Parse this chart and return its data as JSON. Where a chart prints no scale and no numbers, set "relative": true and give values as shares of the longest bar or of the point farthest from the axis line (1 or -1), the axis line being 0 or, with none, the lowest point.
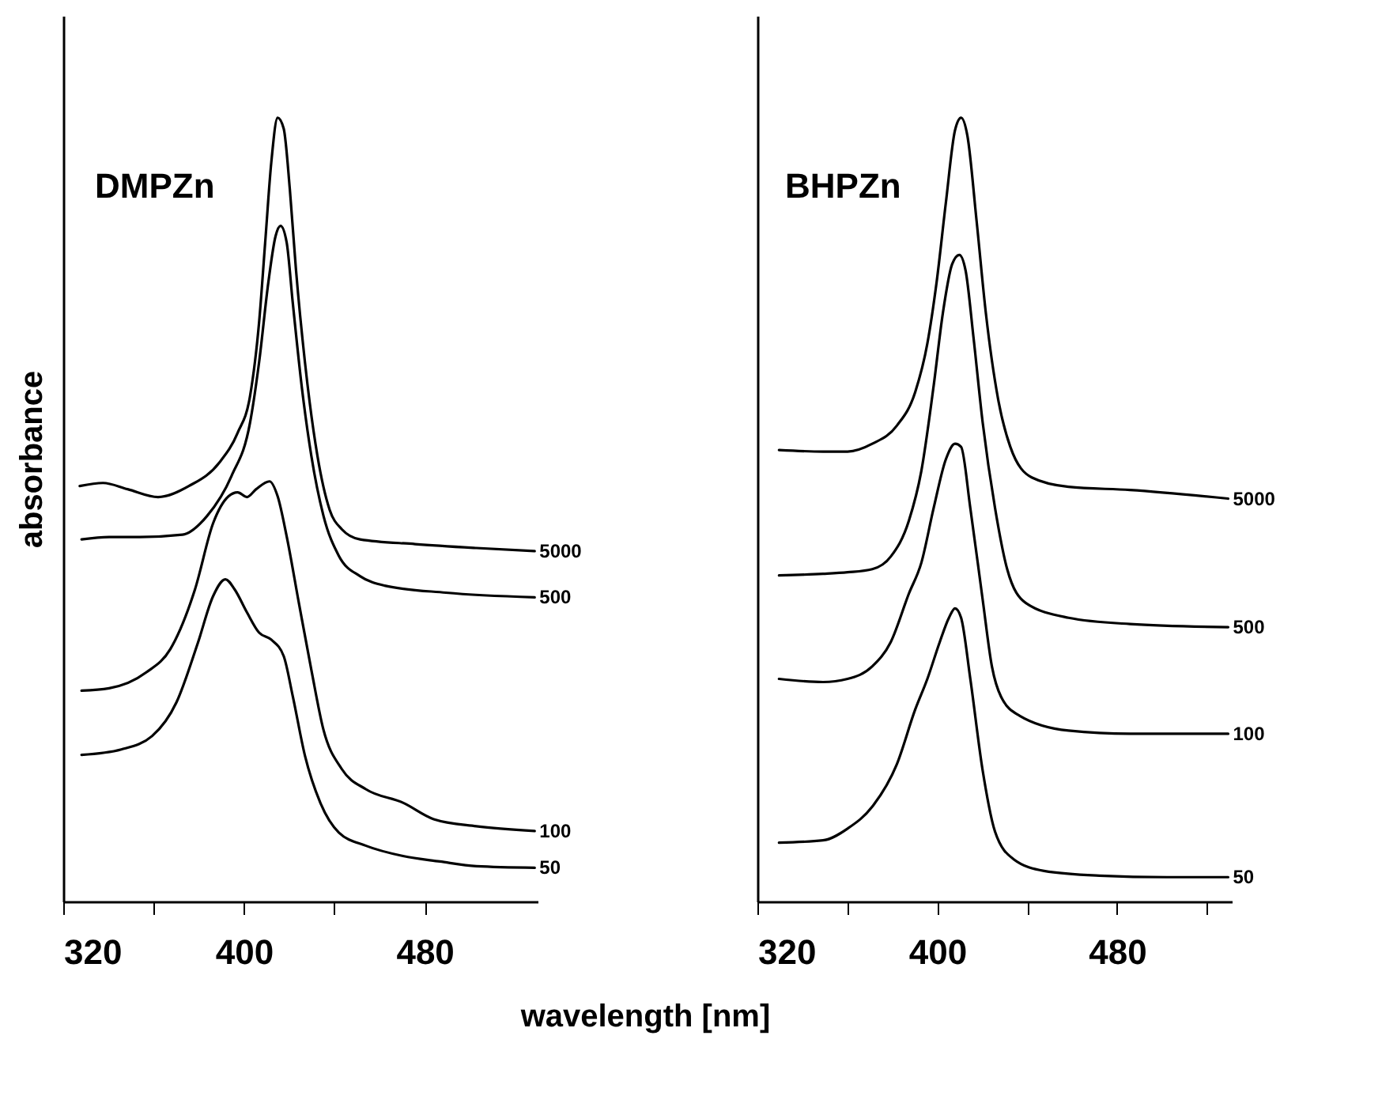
{
  "chart_data": [
    {
      "type": "line",
      "title": "DMPZn",
      "ylabel": "absorbance",
      "xlabel": "wavelength [nm]",
      "relative": true,
      "xlim": [
        320,
        530
      ],
      "xticks": [
        320,
        {
          "value": 360,
          "label": null
        },
        400,
        {
          "value": 440,
          "label": null
        },
        480
      ],
      "grid": false,
      "legend": false,
      "marker": "none",
      "line_style": "solid",
      "series": [
        {
          "name": "5000",
          "color": "#000000",
          "x": [
            327.3,
            337.6,
            348.5,
            362,
            375.6,
            389.1,
            397.2,
            402.7,
            406.7,
            409.4,
            412.1,
            414.9,
            417.6,
            420.3,
            423,
            427,
            432.5,
            437.9,
            443.3,
            451.4,
            475.8,
            502.9,
            528.7
          ],
          "values": [
            0.53,
            0.534,
            0.526,
            0.516,
            0.53,
            0.56,
            0.598,
            0.645,
            0.739,
            0.841,
            0.943,
            1.0,
            0.986,
            0.909,
            0.807,
            0.688,
            0.569,
            0.5,
            0.475,
            0.462,
            0.456,
            0.451,
            0.447
          ]
        },
        {
          "name": "500",
          "color": "#000000",
          "x": [
            328.1,
            340.3,
            353.9,
            372.8,
            383.7,
            394.5,
            402.7,
            406.7,
            410.8,
            414,
            416.2,
            418.9,
            421.6,
            425.7,
            429.8,
            435.2,
            442,
            451.4,
            462.3,
            489.4,
            528.7
          ],
          "values": [
            0.462,
            0.465,
            0.465,
            0.468,
            0.492,
            0.543,
            0.611,
            0.688,
            0.79,
            0.849,
            0.862,
            0.841,
            0.764,
            0.654,
            0.569,
            0.492,
            0.441,
            0.415,
            0.403,
            0.394,
            0.388
          ]
        },
        {
          "name": "100",
          "color": "#000000",
          "x": [
            328.1,
            340.3,
            356.6,
            367.4,
            378.3,
            386.4,
            393.2,
            397.2,
            401.3,
            405.4,
            411.3,
            414.9,
            418.9,
            424.3,
            429.8,
            435.2,
            443.3,
            454.1,
            470.4,
            484,
            502.9,
            528.7
          ],
          "values": [
            0.269,
            0.272,
            0.292,
            0.322,
            0.398,
            0.483,
            0.517,
            0.522,
            0.516,
            0.526,
            0.536,
            0.517,
            0.466,
            0.381,
            0.296,
            0.219,
            0.169,
            0.143,
            0.126,
            0.105,
            0.096,
            0.09
          ]
        },
        {
          "name": "50",
          "color": "#000000",
          "x": [
            328.1,
            345.7,
            359.3,
            370.1,
            379.6,
            386.4,
            391.8,
            395.9,
            401.3,
            406.7,
            412.1,
            417.6,
            421.6,
            427,
            433.8,
            442,
            454.1,
            470.4,
            486.7,
            502.9,
            528.7
          ],
          "values": [
            0.187,
            0.194,
            0.211,
            0.254,
            0.33,
            0.39,
            0.411,
            0.398,
            0.369,
            0.343,
            0.334,
            0.313,
            0.262,
            0.186,
            0.126,
            0.088,
            0.071,
            0.058,
            0.051,
            0.045,
            0.043
          ]
        }
      ]
    },
    {
      "type": "line",
      "title": "BHPZn",
      "relative": true,
      "xlim": [
        320,
        531
      ],
      "xticks": [
        320,
        {
          "value": 360,
          "label": null
        },
        400,
        {
          "value": 440,
          "label": null
        },
        480,
        {
          "value": 520,
          "label": null
        }
      ],
      "grid": false,
      "legend": false,
      "marker": "none",
      "line_style": "solid",
      "series": [
        {
          "name": "5000",
          "color": "#000000",
          "x": [
            329.6,
            349.2,
            360.1,
            371.1,
            382,
            390.2,
            395.6,
            399.7,
            403.8,
            407.9,
            410.6,
            413.4,
            417.5,
            421.6,
            427,
            432.5,
            442,
            458.4,
            485.7,
            529.4
          ],
          "values": [
            0.576,
            0.574,
            0.574,
            0.584,
            0.607,
            0.65,
            0.712,
            0.79,
            0.891,
            0.984,
            1.0,
            0.977,
            0.868,
            0.751,
            0.642,
            0.58,
            0.541,
            0.529,
            0.525,
            0.514
          ]
        },
        {
          "name": "500",
          "color": "#000000",
          "x": [
            329.6,
            349.2,
            360.1,
            371.1,
            379.3,
            387.4,
            392.9,
            398.4,
            402.5,
            406.6,
            409.8,
            412.6,
            416.1,
            420.2,
            425.7,
            431.1,
            439.3,
            458.4,
            485.7,
            529.4
          ],
          "values": [
            0.416,
            0.418,
            0.42,
            0.424,
            0.44,
            0.486,
            0.549,
            0.658,
            0.751,
            0.813,
            0.825,
            0.805,
            0.72,
            0.611,
            0.502,
            0.424,
            0.381,
            0.362,
            0.354,
            0.35
          ]
        },
        {
          "name": "100",
          "color": "#000000",
          "x": [
            329.6,
            349.2,
            360.1,
            371.1,
            379.3,
            387.4,
            392.9,
            398.4,
            403.8,
            407.9,
            410.6,
            414.7,
            420.2,
            424.3,
            428.4,
            436.6,
            458.4,
            485.7,
            529.4
          ],
          "values": [
            0.284,
            0.28,
            0.284,
            0.3,
            0.331,
            0.393,
            0.432,
            0.502,
            0.564,
            0.584,
            0.58,
            0.502,
            0.385,
            0.3,
            0.261,
            0.237,
            0.218,
            0.214,
            0.214
          ]
        },
        {
          "name": "50",
          "color": "#000000",
          "x": [
            329.6,
            349.2,
            360.1,
            371.1,
            382,
            390.2,
            395.6,
            401.1,
            405.2,
            407.9,
            410.6,
            414.7,
            420.2,
            425.7,
            433.9,
            447.5,
            472.1,
            502.1,
            529.4
          ],
          "values": [
            0.075,
            0.078,
            0.093,
            0.121,
            0.175,
            0.245,
            0.284,
            0.331,
            0.362,
            0.374,
            0.362,
            0.284,
            0.167,
            0.089,
            0.054,
            0.039,
            0.033,
            0.031,
            0.031
          ]
        }
      ]
    }
  ]
}
